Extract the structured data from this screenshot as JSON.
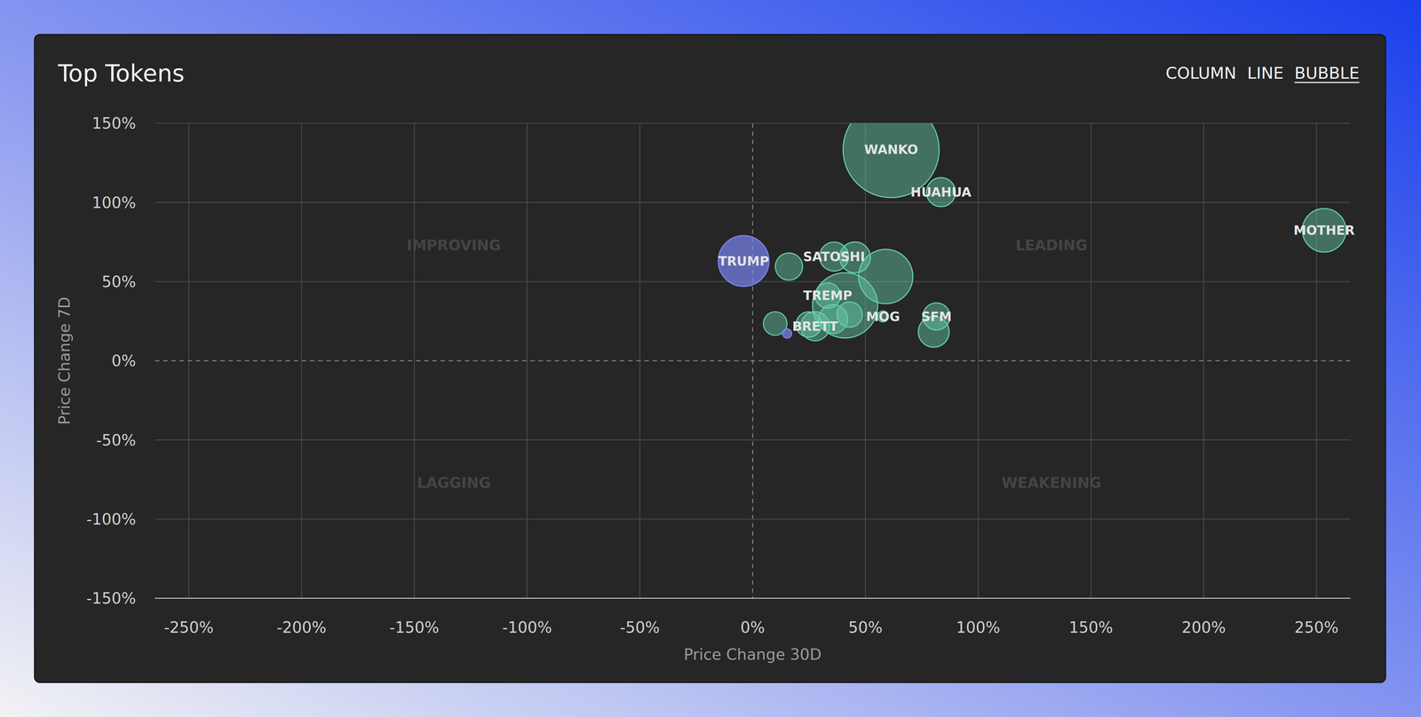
{
  "header": {
    "tabs": [
      "COLUMN",
      "LINE",
      "BUBBLE"
    ],
    "selected_tab": "BUBBLE"
  },
  "chart_data": {
    "type": "bubble",
    "title": "Top Tokens",
    "x_label": "Price Change 30D",
    "y_label": "Price Change 7D",
    "annotations": [
      "IMPROVING",
      "LEADING",
      "LAGGING",
      "WEAKENING"
    ],
    "labels": [
      "WANKO",
      null,
      null,
      "TRUMP",
      "MOTHER",
      null,
      "SATOSHI",
      "HUAHUA",
      null,
      null,
      "SFM",
      null,
      null,
      "TREMP",
      null,
      "BRETT",
      null,
      "MOG",
      null
    ],
    "x": [
      61.4,
      41,
      59,
      -4.0,
      253.4,
      45.4,
      36.1,
      83.5,
      16.1,
      80.3,
      81.5,
      35.7,
      43,
      33.3,
      24.9,
      27.7,
      10,
      57.8,
      15.3
    ],
    "values": [
      133.4,
      35,
      53.2,
      63,
      82.4,
      65.3,
      65.8,
      106.5,
      59.5,
      18.3,
      28,
      26.3,
      29.2,
      41.2,
      22.9,
      21.8,
      23.5,
      28,
      17.2
    ],
    "sizes": [
      2809,
      1296,
      900,
      784,
      576,
      289,
      256,
      256,
      225,
      289,
      225,
      256,
      196,
      196,
      196,
      256,
      169,
      36,
      25
    ],
    "colors": [
      "#66ccaa",
      "#66ccaa",
      "#66ccaa",
      "#7b84f0",
      "#66ccaa",
      "#66ccaa",
      "#66ccaa",
      "#66ccaa",
      "#66ccaa",
      "#66ccaa",
      "#66ccaa",
      "#66ccaa",
      "#66ccaa",
      "#66ccaa",
      "#66ccaa",
      "#66ccaa",
      "#66ccaa",
      "#66ccaa",
      "#7b84f0"
    ],
    "xlim": [
      -265,
      265
    ],
    "ylim": [
      -150,
      150
    ],
    "xticks": [
      {
        "value": -250,
        "label": "-250%"
      },
      {
        "value": -200,
        "label": "-200%"
      },
      {
        "value": -150,
        "label": "-150%"
      },
      {
        "value": -100,
        "label": "-100%"
      },
      {
        "value": -50,
        "label": "-50%"
      },
      {
        "value": 0,
        "label": "0%"
      },
      {
        "value": 50,
        "label": "50%"
      },
      {
        "value": 100,
        "label": "100%"
      },
      {
        "value": 150,
        "label": "150%"
      },
      {
        "value": 200,
        "label": "200%"
      },
      {
        "value": 250,
        "label": "250%"
      }
    ],
    "yticks": [
      {
        "value": -150,
        "label": "-150%"
      },
      {
        "value": -100,
        "label": "-100%"
      },
      {
        "value": -50,
        "label": "-50%"
      },
      {
        "value": 0,
        "label": "0%"
      },
      {
        "value": 50,
        "label": "50%"
      },
      {
        "value": 100,
        "label": "100%"
      },
      {
        "value": 150,
        "label": "150%"
      }
    ],
    "grid": true
  }
}
